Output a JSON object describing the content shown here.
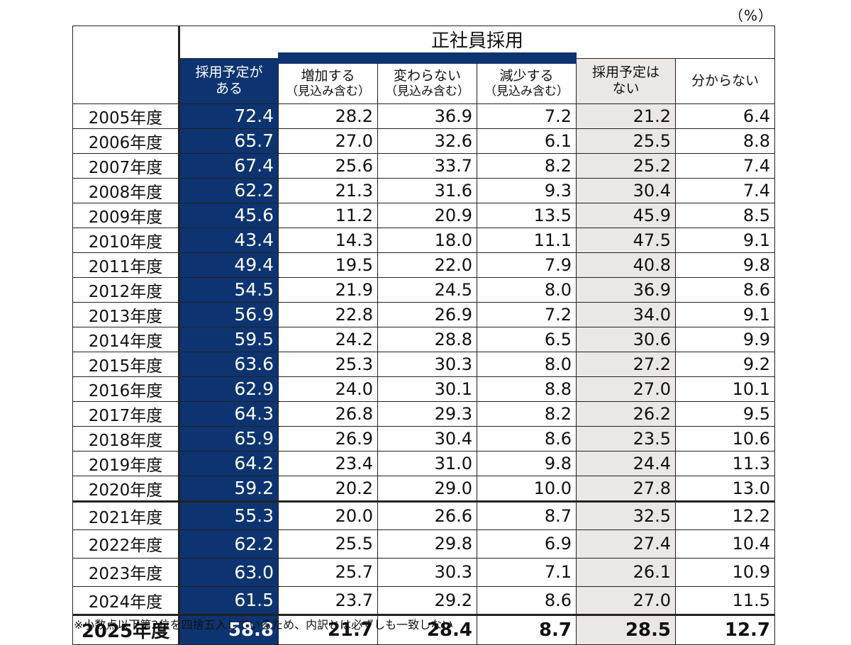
{
  "unit": "（%）",
  "group_header": "正社員採用",
  "columns": [
    {
      "line1": "採用予定が",
      "line2": "ある"
    },
    {
      "line1": "増加する",
      "line2": "（見込み含む）"
    },
    {
      "line1": "変わらない",
      "line2": "（見込み含む）"
    },
    {
      "line1": "減少する",
      "line2": "（見込み含む）"
    },
    {
      "line1": "採用予定は",
      "line2": "ない"
    },
    {
      "line1": "分からない",
      "line2": ""
    }
  ],
  "rows": [
    {
      "year": "2005年度",
      "v": [
        "72.4",
        "28.2",
        "36.9",
        "7.2",
        "21.2",
        "6.4"
      ]
    },
    {
      "year": "2006年度",
      "v": [
        "65.7",
        "27.0",
        "32.6",
        "6.1",
        "25.5",
        "8.8"
      ]
    },
    {
      "year": "2007年度",
      "v": [
        "67.4",
        "25.6",
        "33.7",
        "8.2",
        "25.2",
        "7.4"
      ]
    },
    {
      "year": "2008年度",
      "v": [
        "62.2",
        "21.3",
        "31.6",
        "9.3",
        "30.4",
        "7.4"
      ]
    },
    {
      "year": "2009年度",
      "v": [
        "45.6",
        "11.2",
        "20.9",
        "13.5",
        "45.9",
        "8.5"
      ]
    },
    {
      "year": "2010年度",
      "v": [
        "43.4",
        "14.3",
        "18.0",
        "11.1",
        "47.5",
        "9.1"
      ]
    },
    {
      "year": "2011年度",
      "v": [
        "49.4",
        "19.5",
        "22.0",
        "7.9",
        "40.8",
        "9.8"
      ]
    },
    {
      "year": "2012年度",
      "v": [
        "54.5",
        "21.9",
        "24.5",
        "8.0",
        "36.9",
        "8.6"
      ]
    },
    {
      "year": "2013年度",
      "v": [
        "56.9",
        "22.8",
        "26.9",
        "7.2",
        "34.0",
        "9.1"
      ]
    },
    {
      "year": "2014年度",
      "v": [
        "59.5",
        "24.2",
        "28.8",
        "6.5",
        "30.6",
        "9.9"
      ]
    },
    {
      "year": "2015年度",
      "v": [
        "63.6",
        "25.3",
        "30.3",
        "8.0",
        "27.2",
        "9.2"
      ]
    },
    {
      "year": "2016年度",
      "v": [
        "62.9",
        "24.0",
        "30.1",
        "8.8",
        "27.0",
        "10.1"
      ]
    },
    {
      "year": "2017年度",
      "v": [
        "64.3",
        "26.8",
        "29.3",
        "8.2",
        "26.2",
        "9.5"
      ]
    },
    {
      "year": "2018年度",
      "v": [
        "65.9",
        "26.9",
        "30.4",
        "8.6",
        "23.5",
        "10.6"
      ]
    },
    {
      "year": "2019年度",
      "v": [
        "64.2",
        "23.4",
        "31.0",
        "9.8",
        "24.4",
        "11.3"
      ]
    },
    {
      "year": "2020年度",
      "v": [
        "59.2",
        "20.2",
        "29.0",
        "10.0",
        "27.8",
        "13.0"
      ]
    },
    {
      "year": "2021年度",
      "v": [
        "55.3",
        "20.0",
        "26.6",
        "8.7",
        "32.5",
        "12.2"
      ]
    },
    {
      "year": "2022年度",
      "v": [
        "62.2",
        "25.5",
        "29.8",
        "6.9",
        "27.4",
        "10.4"
      ]
    },
    {
      "year": "2023年度",
      "v": [
        "63.0",
        "25.7",
        "30.3",
        "7.1",
        "26.1",
        "10.9"
      ]
    },
    {
      "year": "2024年度",
      "v": [
        "61.5",
        "23.7",
        "29.2",
        "8.6",
        "27.0",
        "11.5"
      ]
    },
    {
      "year": "2025年度",
      "v": [
        "58.8",
        "21.7",
        "28.4",
        "8.7",
        "28.5",
        "12.7"
      ]
    }
  ],
  "footnote": "※小数点以下第2位を四捨五入しているため、内訳とは必ずしも一致しない",
  "colors": {
    "navy": "#0d3470",
    "grey": "#ebe7e4"
  }
}
